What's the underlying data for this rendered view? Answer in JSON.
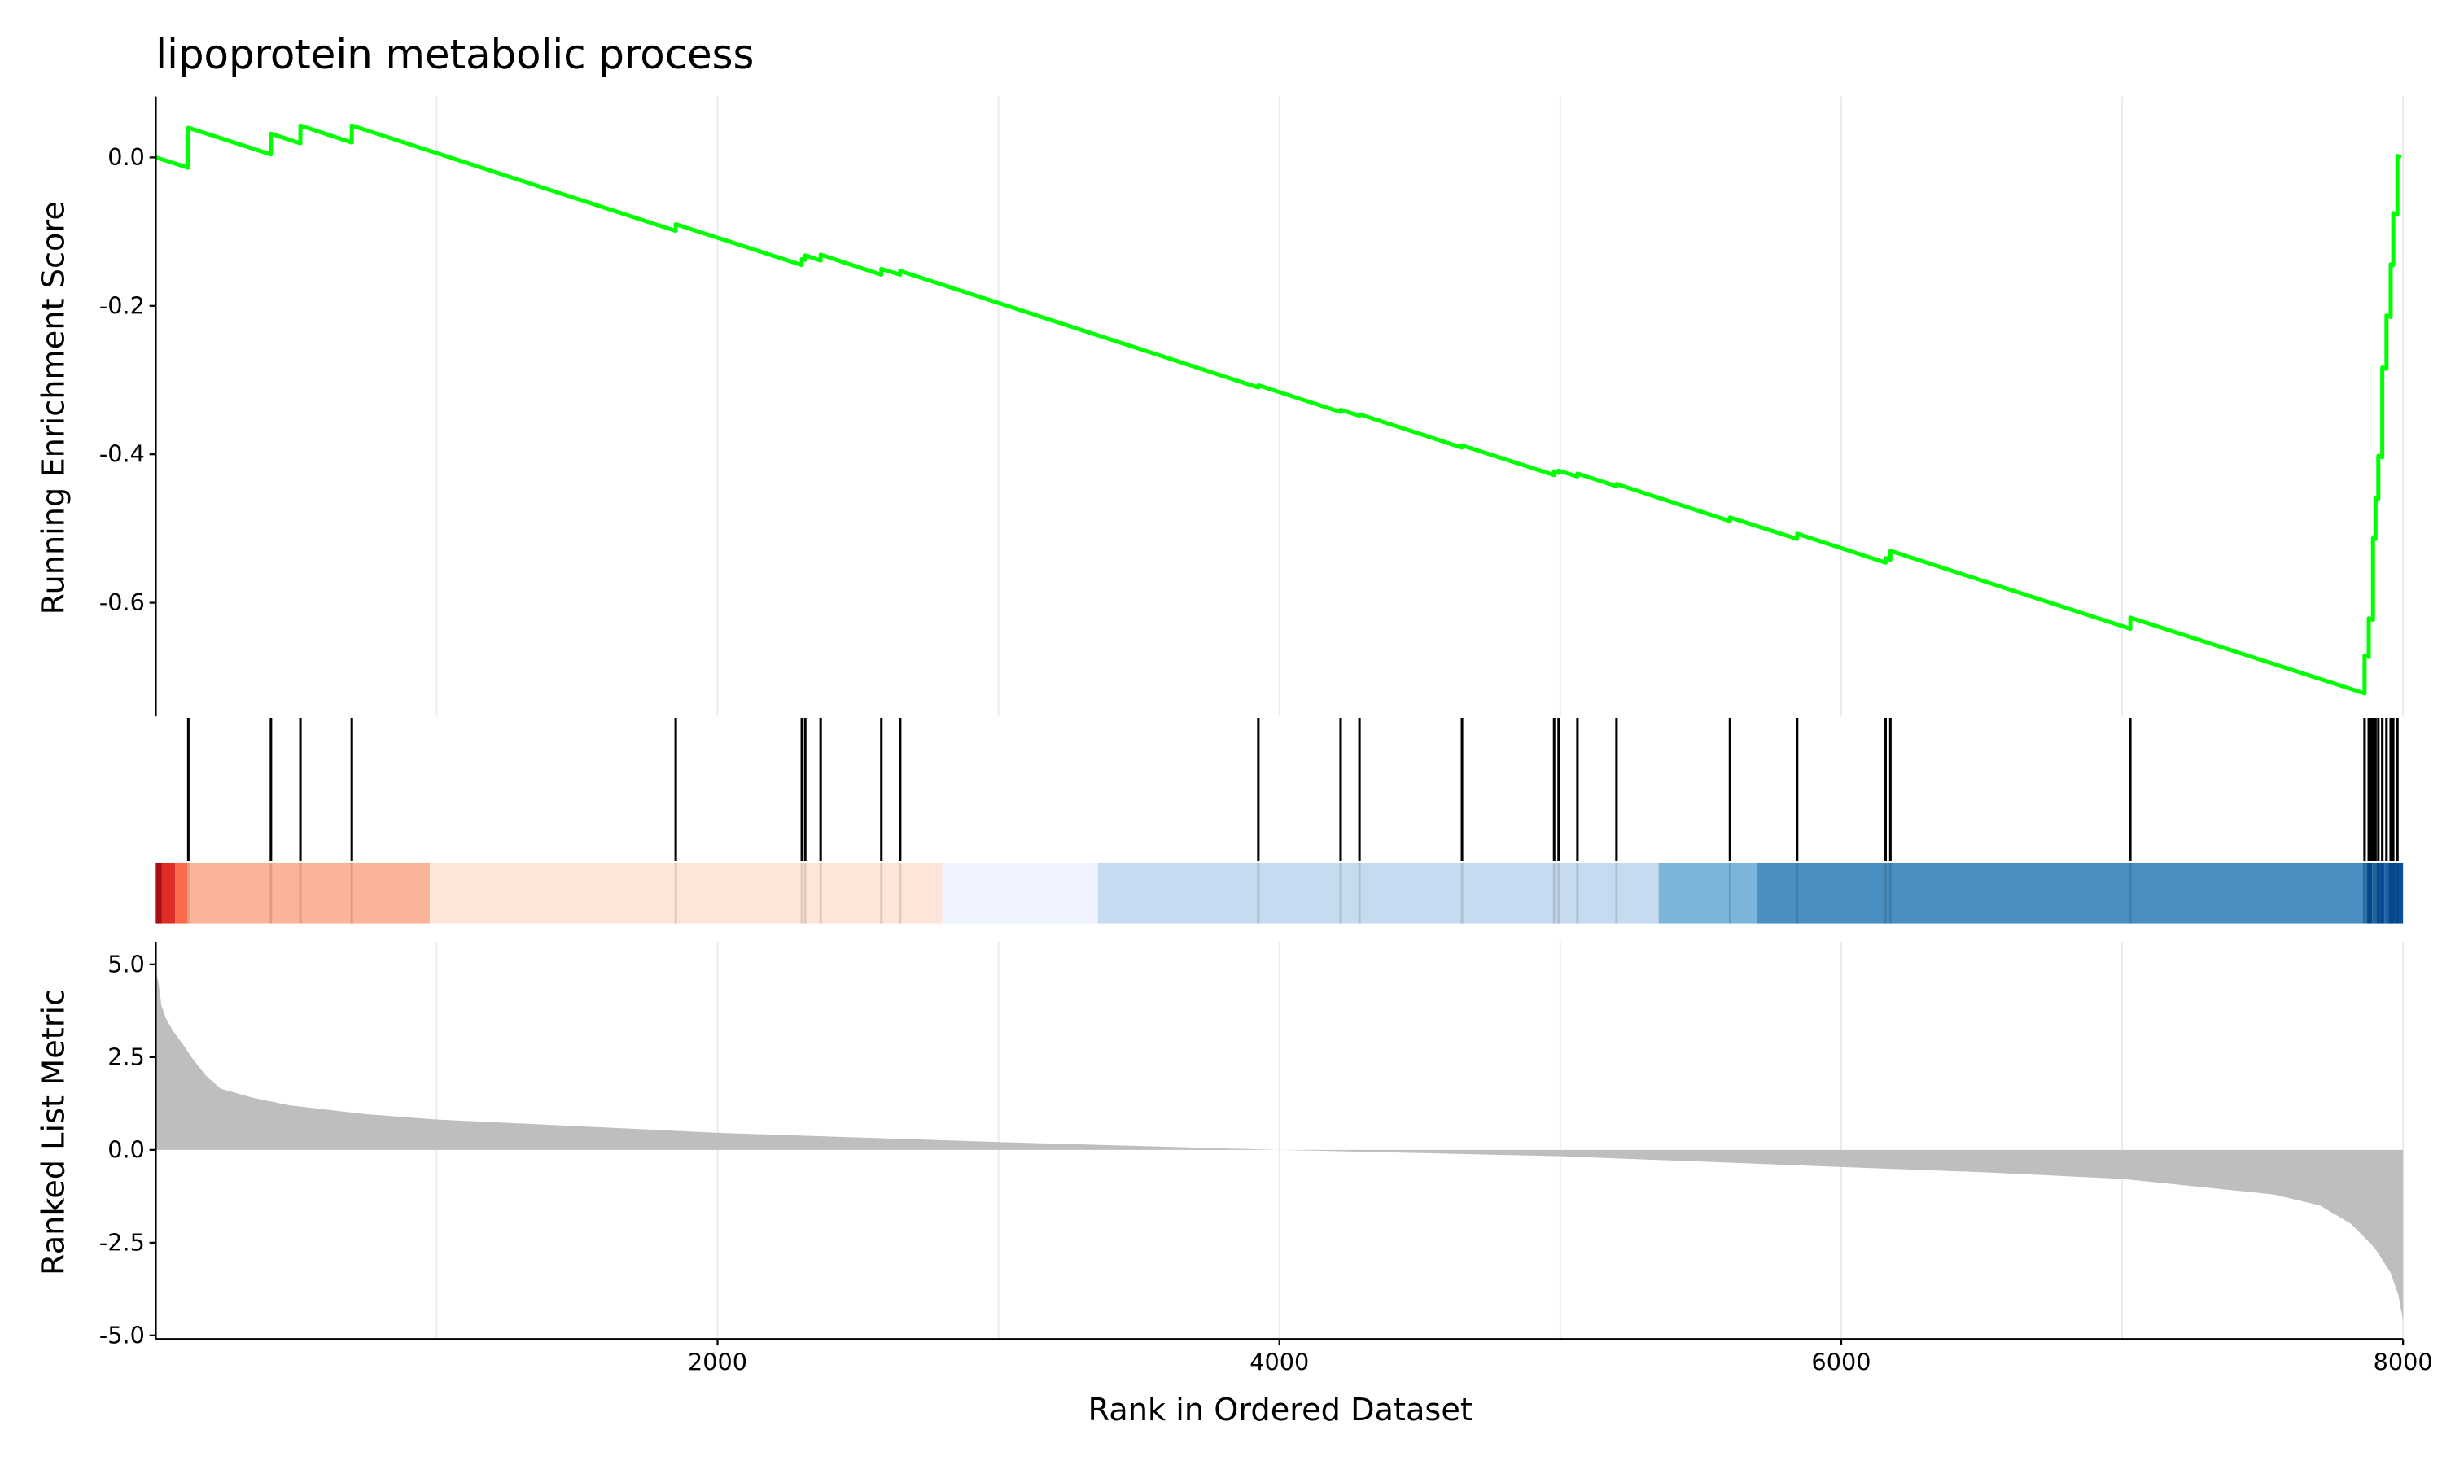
{
  "chart_data": {
    "type": "line",
    "title": "lipoprotein metabolic process",
    "xlabel": "Rank in Ordered Dataset",
    "xlim": [
      0,
      8000
    ],
    "x_ticks": [
      2000,
      4000,
      6000,
      8000
    ],
    "grid": "vertical only",
    "line_color": "#00ff00",
    "panels": {
      "running_es": {
        "ylabel": "Running Enrichment Score",
        "ylim": [
          -0.753,
          0.082
        ],
        "y_ticks": [
          "0.0",
          "-0.2",
          "-0.4",
          "-0.6"
        ],
        "y_tick_values": [
          0.0,
          -0.2,
          -0.4,
          -0.6
        ],
        "points": [
          [
            0,
            0
          ],
          [
            116,
            -0.014
          ],
          [
            116,
            0.04
          ],
          [
            410,
            0.004
          ],
          [
            410,
            0.032
          ],
          [
            515,
            0.019
          ],
          [
            515,
            0.043
          ],
          [
            698,
            0.02
          ],
          [
            698,
            0.043
          ],
          [
            1851,
            -0.099
          ],
          [
            1851,
            -0.09
          ],
          [
            2300,
            -0.145
          ],
          [
            2300,
            -0.137
          ],
          [
            2312,
            -0.138
          ],
          [
            2312,
            -0.132
          ],
          [
            2367,
            -0.139
          ],
          [
            2367,
            -0.131
          ],
          [
            2583,
            -0.158
          ],
          [
            2583,
            -0.15
          ],
          [
            2650,
            -0.158
          ],
          [
            2650,
            -0.153
          ],
          [
            3925,
            -0.31
          ],
          [
            3925,
            -0.307
          ],
          [
            4218,
            -0.343
          ],
          [
            4218,
            -0.34
          ],
          [
            4285,
            -0.348
          ],
          [
            4285,
            -0.346
          ],
          [
            4650,
            -0.391
          ],
          [
            4650,
            -0.388
          ],
          [
            4978,
            -0.428
          ],
          [
            4978,
            -0.423
          ],
          [
            4994,
            -0.425
          ],
          [
            4994,
            -0.422
          ],
          [
            5061,
            -0.43
          ],
          [
            5061,
            -0.426
          ],
          [
            5200,
            -0.443
          ],
          [
            5200,
            -0.44
          ],
          [
            5604,
            -0.49
          ],
          [
            5604,
            -0.485
          ],
          [
            5843,
            -0.514
          ],
          [
            5843,
            -0.507
          ],
          [
            6158,
            -0.546
          ],
          [
            6158,
            -0.54
          ],
          [
            6175,
            -0.542
          ],
          [
            6175,
            -0.53
          ],
          [
            7029,
            -0.635
          ],
          [
            7029,
            -0.62
          ],
          [
            7863,
            -0.722
          ],
          [
            7863,
            -0.671
          ],
          [
            7878,
            -0.673
          ],
          [
            7878,
            -0.621
          ],
          [
            7893,
            -0.623
          ],
          [
            7893,
            -0.513
          ],
          [
            7902,
            -0.514
          ],
          [
            7902,
            -0.459
          ],
          [
            7912,
            -0.46
          ],
          [
            7912,
            -0.402
          ],
          [
            7926,
            -0.404
          ],
          [
            7926,
            -0.283
          ],
          [
            7941,
            -0.285
          ],
          [
            7941,
            -0.213
          ],
          [
            7956,
            -0.215
          ],
          [
            7956,
            -0.144
          ],
          [
            7965,
            -0.145
          ],
          [
            7965,
            -0.075
          ],
          [
            7980,
            -0.077
          ],
          [
            7980,
            0.002
          ],
          [
            7993,
            0.0
          ]
        ]
      },
      "hits": [
        116,
        410,
        515,
        698,
        1851,
        2300,
        2312,
        2367,
        2583,
        2650,
        3925,
        4218,
        4285,
        4650,
        4978,
        4994,
        5061,
        5200,
        5604,
        5843,
        6158,
        6175,
        7029,
        7863,
        7878,
        7885,
        7893,
        7902,
        7912,
        7926,
        7941,
        7956,
        7965,
        7980
      ],
      "heatmap_bands": [
        {
          "from": 0,
          "to": 22,
          "color": "#a50f15"
        },
        {
          "from": 22,
          "to": 69,
          "color": "#de2d26"
        },
        {
          "from": 69,
          "to": 112,
          "color": "#fb6a4a"
        },
        {
          "from": 112,
          "to": 976,
          "color": "#fcb499"
        },
        {
          "from": 976,
          "to": 2800,
          "color": "#fee5d9"
        },
        {
          "from": 2800,
          "to": 3354,
          "color": "#eff3ff"
        },
        {
          "from": 3354,
          "to": 5350,
          "color": "#c6dbef"
        },
        {
          "from": 5350,
          "to": 5700,
          "color": "#7bb6da"
        },
        {
          "from": 5700,
          "to": 7855,
          "color": "#4a8fc2"
        },
        {
          "from": 7855,
          "to": 7870,
          "color": "#2f79b3"
        },
        {
          "from": 7870,
          "to": 7890,
          "color": "#08519c"
        },
        {
          "from": 7890,
          "to": 7905,
          "color": "#2171b5"
        },
        {
          "from": 7905,
          "to": 7935,
          "color": "#08519c"
        },
        {
          "from": 7935,
          "to": 7945,
          "color": "#2171b5"
        },
        {
          "from": 7945,
          "to": 8000,
          "color": "#08519c"
        }
      ],
      "ranked_metric": {
        "ylabel": "Ranked List Metric",
        "ylim": [
          -5.1,
          5.6
        ],
        "y_ticks": [
          "5.0",
          "2.5",
          "0.0",
          "-2.5",
          "-5.0"
        ],
        "y_tick_values": [
          5.0,
          2.5,
          0.0,
          -2.5,
          -5.0
        ],
        "fill_color": "#bebebe",
        "points": [
          [
            0,
            4.8
          ],
          [
            10,
            4.5
          ],
          [
            20,
            3.9
          ],
          [
            36,
            3.55
          ],
          [
            62,
            3.2
          ],
          [
            101,
            2.8
          ],
          [
            127,
            2.5
          ],
          [
            179,
            2.0
          ],
          [
            231,
            1.65
          ],
          [
            348,
            1.4
          ],
          [
            478,
            1.2
          ],
          [
            738,
            0.97
          ],
          [
            997,
            0.82
          ],
          [
            1475,
            0.65
          ],
          [
            2000,
            0.46
          ],
          [
            3000,
            0.21
          ],
          [
            4000,
            0.0
          ],
          [
            5000,
            -0.17
          ],
          [
            6000,
            -0.46
          ],
          [
            6500,
            -0.6
          ],
          [
            7000,
            -0.78
          ],
          [
            7540,
            -1.2
          ],
          [
            7705,
            -1.5
          ],
          [
            7816,
            -2.0
          ],
          [
            7900,
            -2.65
          ],
          [
            7955,
            -3.3
          ],
          [
            7983,
            -3.9
          ],
          [
            8000,
            -4.6
          ]
        ]
      }
    }
  }
}
